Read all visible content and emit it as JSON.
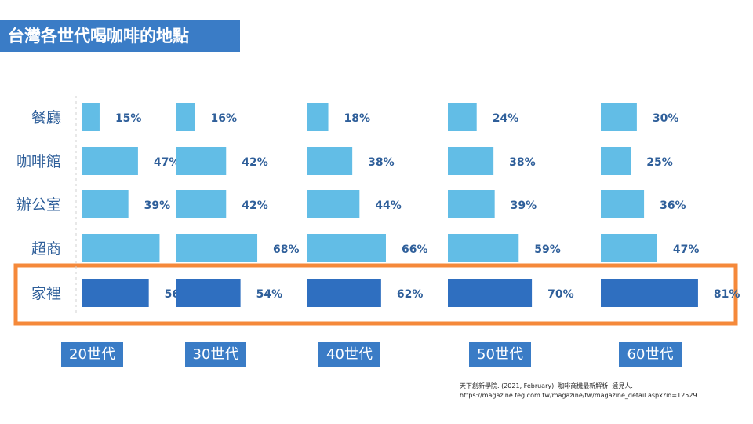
{
  "title": "台灣各世代喝咖啡的地點",
  "chart_data": {
    "type": "bar",
    "orientation": "horizontal",
    "categories": [
      "餐廳",
      "咖啡館",
      "辦公室",
      "超商",
      "家裡"
    ],
    "unit": "%",
    "series": [
      {
        "name": "20世代",
        "values": [
          15,
          47,
          39,
          65,
          56
        ]
      },
      {
        "name": "30世代",
        "values": [
          16,
          42,
          42,
          68,
          54
        ]
      },
      {
        "name": "40世代",
        "values": [
          18,
          38,
          44,
          66,
          62
        ]
      },
      {
        "name": "50世代",
        "values": [
          24,
          38,
          39,
          59,
          70
        ]
      },
      {
        "name": "60世代",
        "values": [
          30,
          25,
          36,
          47,
          81
        ]
      }
    ],
    "highlight_category": "家裡",
    "colors": {
      "bar": "#62bde6",
      "highlight_bar": "#2f6fc0",
      "highlight_frame": "#f5893a"
    }
  },
  "source": {
    "line1": "天下創新學院. (2021, February). 咖啡商機最新解析. 遠見人.",
    "line2": "https://magazine.feg.com.tw/magazine/tw/magazine_detail.aspx?id=12529"
  }
}
